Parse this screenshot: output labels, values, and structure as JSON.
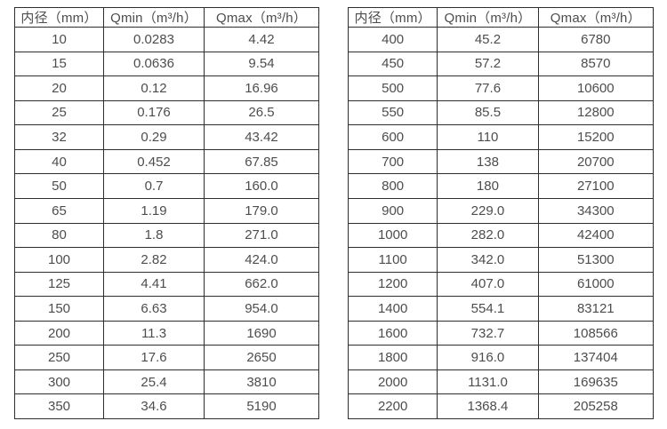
{
  "colors": {
    "border": "#2e2e2e",
    "text": "#4d4d4d",
    "background": "#ffffff"
  },
  "chart_data": [
    {
      "type": "table",
      "columns": [
        "内径（mm）",
        "Qmin（m³/h）",
        "Qmax（m³/h）"
      ],
      "rows": [
        [
          "10",
          "0.0283",
          "4.42"
        ],
        [
          "15",
          "0.0636",
          "9.54"
        ],
        [
          "20",
          "0.12",
          "16.96"
        ],
        [
          "25",
          "0.176",
          "26.5"
        ],
        [
          "32",
          "0.29",
          "43.42"
        ],
        [
          "40",
          "0.452",
          "67.85"
        ],
        [
          "50",
          "0.7",
          "160.0"
        ],
        [
          "65",
          "1.19",
          "179.0"
        ],
        [
          "80",
          "1.8",
          "271.0"
        ],
        [
          "100",
          "2.82",
          "424.0"
        ],
        [
          "125",
          "4.41",
          "662.0"
        ],
        [
          "150",
          "6.63",
          "954.0"
        ],
        [
          "200",
          "11.3",
          "1690"
        ],
        [
          "250",
          "17.6",
          "2650"
        ],
        [
          "300",
          "25.4",
          "3810"
        ],
        [
          "350",
          "34.6",
          "5190"
        ]
      ]
    },
    {
      "type": "table",
      "columns": [
        "内径（mm）",
        "Qmin（m³/h）",
        "Qmax（m³/h）"
      ],
      "rows": [
        [
          "400",
          "45.2",
          "6780"
        ],
        [
          "450",
          "57.2",
          "8570"
        ],
        [
          "500",
          "77.6",
          "10600"
        ],
        [
          "550",
          "85.5",
          "12800"
        ],
        [
          "600",
          "110",
          "15200"
        ],
        [
          "700",
          "138",
          "20700"
        ],
        [
          "800",
          "180",
          "27100"
        ],
        [
          "900",
          "229.0",
          "34300"
        ],
        [
          "1000",
          "282.0",
          "42400"
        ],
        [
          "1100",
          "342.0",
          "51300"
        ],
        [
          "1200",
          "407.0",
          "61000"
        ],
        [
          "1400",
          "554.1",
          "83121"
        ],
        [
          "1600",
          "732.7",
          "108566"
        ],
        [
          "1800",
          "916.0",
          "137404"
        ],
        [
          "2000",
          "1131.0",
          "169635"
        ],
        [
          "2200",
          "1368.4",
          "205258"
        ]
      ]
    }
  ]
}
